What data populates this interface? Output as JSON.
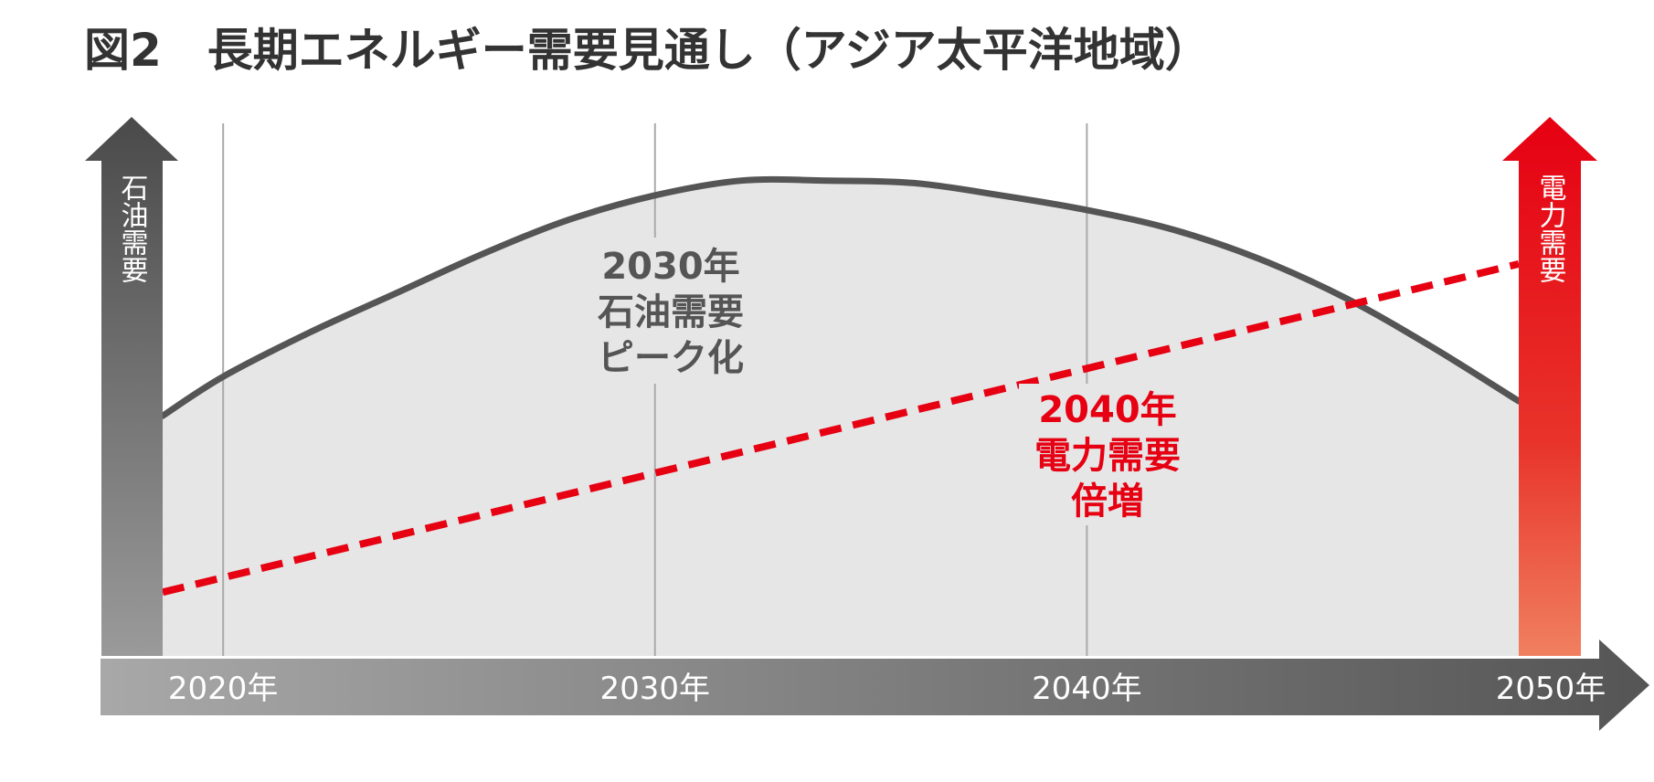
{
  "chart_data": {
    "type": "line",
    "title": "図2　長期エネルギー需要見通し（アジア太平洋地域）",
    "x_ticks": [
      "2020年",
      "2030年",
      "2040年",
      "2050年"
    ],
    "xlim": [
      2018.6,
      2050
    ],
    "y_axis_left_label": "石油需要",
    "y_axis_right_label": "電力需要",
    "grid": "vertical-at-decades",
    "series": [
      {
        "name": "石油需要",
        "style": "solid-area",
        "color": "#555555",
        "x": [
          2018.6,
          2020,
          2022,
          2024,
          2026,
          2028,
          2030,
          2032,
          2034,
          2036,
          2038,
          2040,
          2042,
          2044,
          2046,
          2048,
          2050
        ],
        "values": [
          0.49,
          0.57,
          0.66,
          0.74,
          0.82,
          0.89,
          0.94,
          0.97,
          0.97,
          0.965,
          0.94,
          0.91,
          0.87,
          0.81,
          0.73,
          0.63,
          0.52
        ]
      },
      {
        "name": "電力需要",
        "style": "dashed",
        "color": "#e60012",
        "x": [
          2018.6,
          2050
        ],
        "values": [
          0.13,
          0.8
        ]
      }
    ],
    "ylim": [
      0,
      1.1
    ],
    "annotations": [
      {
        "lines": [
          "2030年",
          "石油需要",
          "ピーク化"
        ],
        "color": "#555555"
      },
      {
        "lines": [
          "2040年",
          "電力需要",
          "倍増"
        ],
        "color": "#e60012"
      }
    ]
  }
}
